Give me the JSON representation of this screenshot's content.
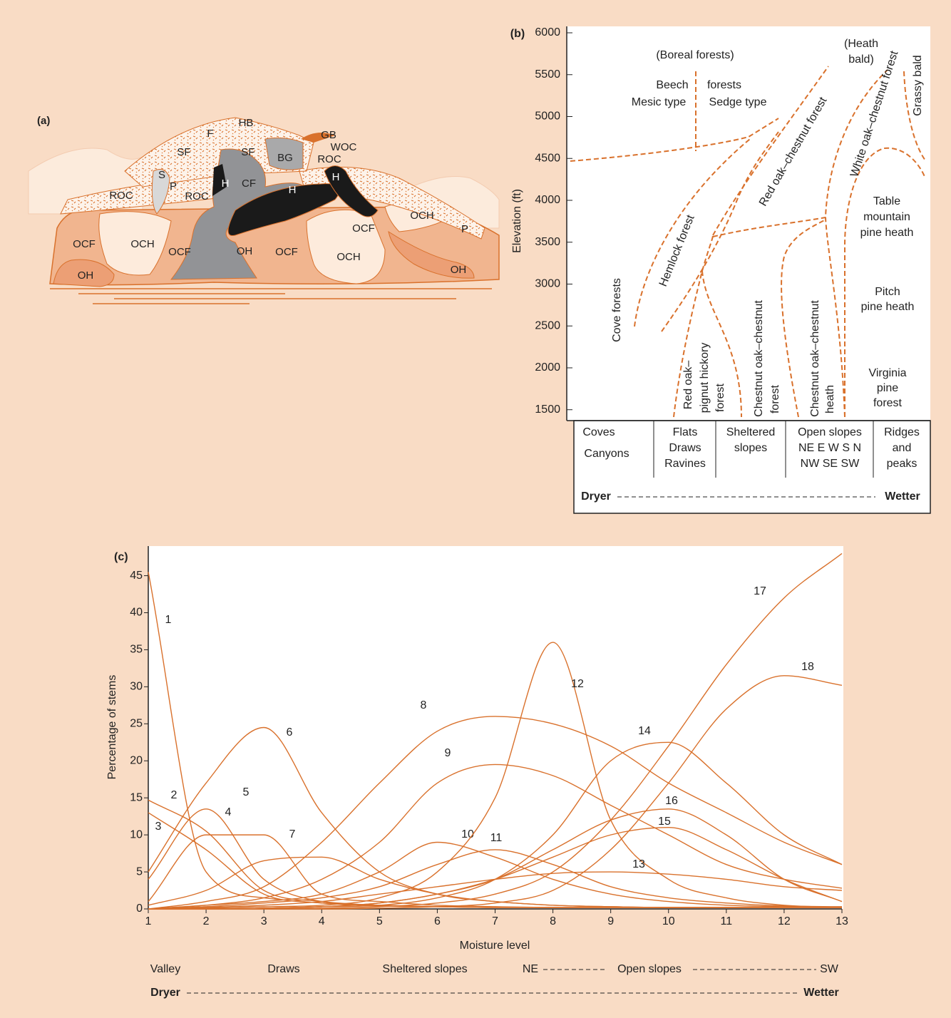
{
  "panel_a": {
    "tag": "(a)",
    "labels": [
      "HB",
      "F",
      "SF",
      "SF",
      "GB",
      "WOC",
      "BG",
      "ROC",
      "S",
      "P",
      "ROC",
      "ROC",
      "H",
      "CF",
      "H",
      "H",
      "OCF",
      "OCH",
      "OCF",
      "OH",
      "OCF",
      "OCH",
      "OCF",
      "OCH",
      "P",
      "OH",
      "OH"
    ]
  },
  "panel_b": {
    "tag": "(b)",
    "ylabel": "Elevation (ft)",
    "ylim": [
      1370,
      6000
    ],
    "yticks": [
      1500,
      2000,
      2500,
      3000,
      3500,
      4000,
      4500,
      5000,
      5500,
      6000
    ],
    "labels": [
      "(Boreal forests)",
      "Beech",
      "forests",
      "Mesic type",
      "Sedge type",
      "(Heath",
      "bald)",
      "Cove forests",
      "Hemlock forest",
      "Red oak–chestnut forest",
      "White oak–chestnut forest",
      "Grassy bald",
      "Red oak–",
      "pignut hickory",
      "forest",
      "Chestnut oak–chestnut",
      "forest",
      "Chestnut oak–chestnut",
      "heath",
      "Table",
      "mountain",
      "pine heath",
      "Pitch",
      "pine heath",
      "Virginia",
      "pine",
      "forest"
    ],
    "table": {
      "columns": [
        [
          "Coves",
          "Canyons"
        ],
        [
          "Flats",
          "Draws",
          "Ravines"
        ],
        [
          "Sheltered",
          "slopes"
        ],
        [
          "Open slopes",
          "NE E W S N",
          "NW SE SW"
        ],
        [
          "Ridges",
          "and",
          "peaks"
        ]
      ],
      "dryer": "Dryer",
      "wetter": "Wetter"
    }
  },
  "chart_data": {
    "type": "line",
    "tag": "(c)",
    "xlabel": "Moisture level",
    "ylabel": "Percentage of stems",
    "x": [
      1,
      2,
      3,
      4,
      5,
      6,
      7,
      8,
      9,
      10,
      11,
      12,
      13
    ],
    "xlim": [
      1,
      13
    ],
    "ylim": [
      0,
      49
    ],
    "xticks": [
      1,
      2,
      3,
      4,
      5,
      6,
      7,
      8,
      9,
      10,
      11,
      12,
      13
    ],
    "yticks": [
      0,
      5,
      10,
      15,
      20,
      25,
      30,
      35,
      40,
      45
    ],
    "color": "#d9712c",
    "series": [
      {
        "name": "1",
        "values": [
          45.5,
          5,
          1.5,
          0.8,
          0.5,
          0.3,
          0.2,
          0.2,
          0.2,
          0.2,
          0.2,
          0.2,
          0.2
        ]
      },
      {
        "name": "2",
        "values": [
          14.7,
          10.5,
          2.5,
          1,
          0.5,
          0.3,
          0.2,
          0.2,
          0.2,
          0.2,
          0.2,
          0.2,
          0.2
        ]
      },
      {
        "name": "3",
        "values": [
          13,
          8,
          2,
          0.8,
          0.4,
          0.3,
          0.2,
          0.2,
          0.2,
          0.2,
          0.2,
          0.2,
          0.2
        ]
      },
      {
        "name": "4",
        "values": [
          4,
          13.5,
          4,
          1,
          0.5,
          0.3,
          0.2,
          0.2,
          0.2,
          0.2,
          0.2,
          0.2,
          0.2
        ]
      },
      {
        "name": "5",
        "values": [
          1,
          10,
          10,
          2,
          1,
          0.5,
          0.3,
          0.2,
          0.2,
          0.2,
          0.2,
          0.2,
          0.2
        ]
      },
      {
        "name": "6",
        "values": [
          5,
          17,
          24.5,
          13,
          5,
          2,
          1,
          0.5,
          0.3,
          0.2,
          0.2,
          0.2,
          0.2
        ]
      },
      {
        "name": "7",
        "values": [
          0.5,
          2.5,
          6.5,
          7,
          4,
          2,
          1,
          0.5,
          0.3,
          0.2,
          0.2,
          0.2,
          0.2
        ]
      },
      {
        "name": "8",
        "values": [
          0,
          1,
          3,
          9,
          17,
          24,
          26,
          25,
          22,
          17,
          13,
          9,
          6
        ]
      },
      {
        "name": "9",
        "values": [
          0,
          0.5,
          1.5,
          4,
          9,
          17,
          19.5,
          18,
          14,
          10,
          6,
          4,
          2.8
        ]
      },
      {
        "name": "10",
        "values": [
          0,
          0.5,
          1,
          2,
          5,
          9,
          7,
          4,
          2,
          1,
          0.5,
          0.3,
          0.2
        ]
      },
      {
        "name": "11",
        "values": [
          0,
          0.3,
          0.8,
          1.5,
          3,
          6,
          8,
          6,
          3,
          1.5,
          0.8,
          0.4,
          0.3
        ]
      },
      {
        "name": "12",
        "values": [
          0,
          0.1,
          0.3,
          0.5,
          1.5,
          5,
          15,
          36,
          12,
          4,
          1.5,
          0.5,
          0.2
        ]
      },
      {
        "name": "13",
        "values": [
          0,
          0.2,
          0.5,
          1,
          2,
          3,
          4,
          4.8,
          5,
          4.7,
          4,
          3,
          2.5
        ]
      },
      {
        "name": "14",
        "values": [
          0,
          0,
          0.1,
          0.3,
          0.5,
          1.5,
          4,
          10,
          20,
          22.5,
          17,
          10,
          6
        ]
      },
      {
        "name": "15",
        "values": [
          0,
          0,
          0.1,
          0.3,
          0.8,
          2,
          4,
          7,
          10,
          11,
          8,
          4,
          1
        ]
      },
      {
        "name": "16",
        "values": [
          0,
          0,
          0.1,
          0.3,
          0.8,
          2,
          4,
          8,
          12,
          13.5,
          10,
          4,
          1
        ]
      },
      {
        "name": "17",
        "values": [
          0,
          0,
          0,
          0.1,
          0.3,
          0.8,
          2,
          5,
          12,
          22,
          33,
          42,
          48
        ]
      },
      {
        "name": "18",
        "values": [
          0,
          0,
          0,
          0,
          0.1,
          0.3,
          0.8,
          2.5,
          8,
          17,
          27,
          31.5,
          30.2
        ]
      }
    ],
    "annotations": [
      "Valley",
      "Draws",
      "Sheltered slopes",
      "NE",
      "Open slopes",
      "SW",
      "Dryer",
      "Wetter"
    ]
  }
}
